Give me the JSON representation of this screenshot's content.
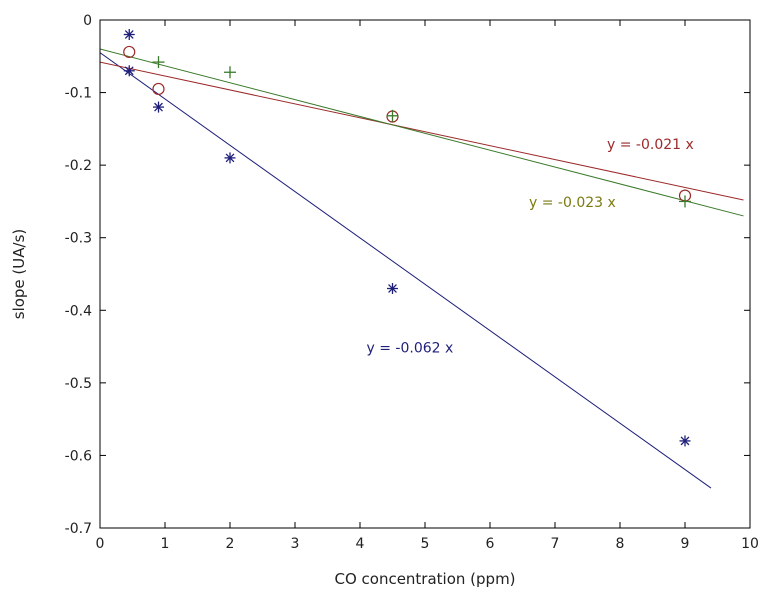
{
  "chart_data": {
    "type": "scatter",
    "xlabel": "CO concentration (ppm)",
    "ylabel": "slope (UA/s)",
    "xlim": [
      0,
      10
    ],
    "ylim": [
      -0.7,
      0
    ],
    "x_ticks": [
      0,
      1,
      2,
      3,
      4,
      5,
      6,
      7,
      8,
      9,
      10
    ],
    "y_ticks": [
      0,
      -0.1,
      -0.2,
      -0.3,
      -0.4,
      -0.5,
      -0.6,
      -0.7
    ],
    "x_tick_labels": [
      "0",
      "1",
      "2",
      "3",
      "4",
      "5",
      "6",
      "7",
      "8",
      "9",
      "10"
    ],
    "y_tick_labels": [
      "0",
      "-0.1",
      "-0.2",
      "-0.3",
      "-0.4",
      "-0.5",
      "-0.6",
      "-0.7"
    ],
    "grid": false,
    "series": [
      {
        "marker": "asterisk",
        "color": "#1f1f7a",
        "points": [
          {
            "x": 0.45,
            "y": -0.02
          },
          {
            "x": 0.45,
            "y": -0.07
          },
          {
            "x": 0.9,
            "y": -0.12
          },
          {
            "x": 2.0,
            "y": -0.19
          },
          {
            "x": 4.5,
            "y": -0.37
          },
          {
            "x": 9.0,
            "y": -0.58
          }
        ],
        "fit": {
          "x_start": 0.0,
          "y_start": -0.045,
          "x_end": 9.4,
          "y_end": -0.645
        },
        "equation": "y = -0.062 x"
      },
      {
        "marker": "circle",
        "color": "#9b2a2a",
        "points": [
          {
            "x": 0.45,
            "y": -0.044
          },
          {
            "x": 0.9,
            "y": -0.095
          },
          {
            "x": 4.5,
            "y": -0.133
          },
          {
            "x": 9.0,
            "y": -0.242
          }
        ],
        "fit": {
          "x_start": 0.0,
          "y_start": -0.058,
          "x_end": 9.9,
          "y_end": -0.248
        },
        "equation": "y = -0.021 x"
      },
      {
        "marker": "plus",
        "color": "#3a7a2a",
        "points": [
          {
            "x": 0.9,
            "y": -0.058
          },
          {
            "x": 2.0,
            "y": -0.072
          },
          {
            "x": 4.5,
            "y": -0.132
          },
          {
            "x": 9.0,
            "y": -0.25
          }
        ],
        "fit": {
          "x_start": 0.0,
          "y_start": -0.04,
          "x_end": 9.9,
          "y_end": -0.27
        },
        "equation": "y = -0.023 x"
      }
    ],
    "equation_labels": [
      {
        "text": "y = -0.021 x",
        "x": 7.8,
        "y": -0.178,
        "color": "#9b2a2a"
      },
      {
        "text": "y = -0.023 x",
        "x": 6.6,
        "y": -0.258,
        "color": "#7a7a10"
      },
      {
        "text": "y = -0.062 x",
        "x": 4.1,
        "y": -0.458,
        "color": "#1f1f7a"
      }
    ]
  }
}
